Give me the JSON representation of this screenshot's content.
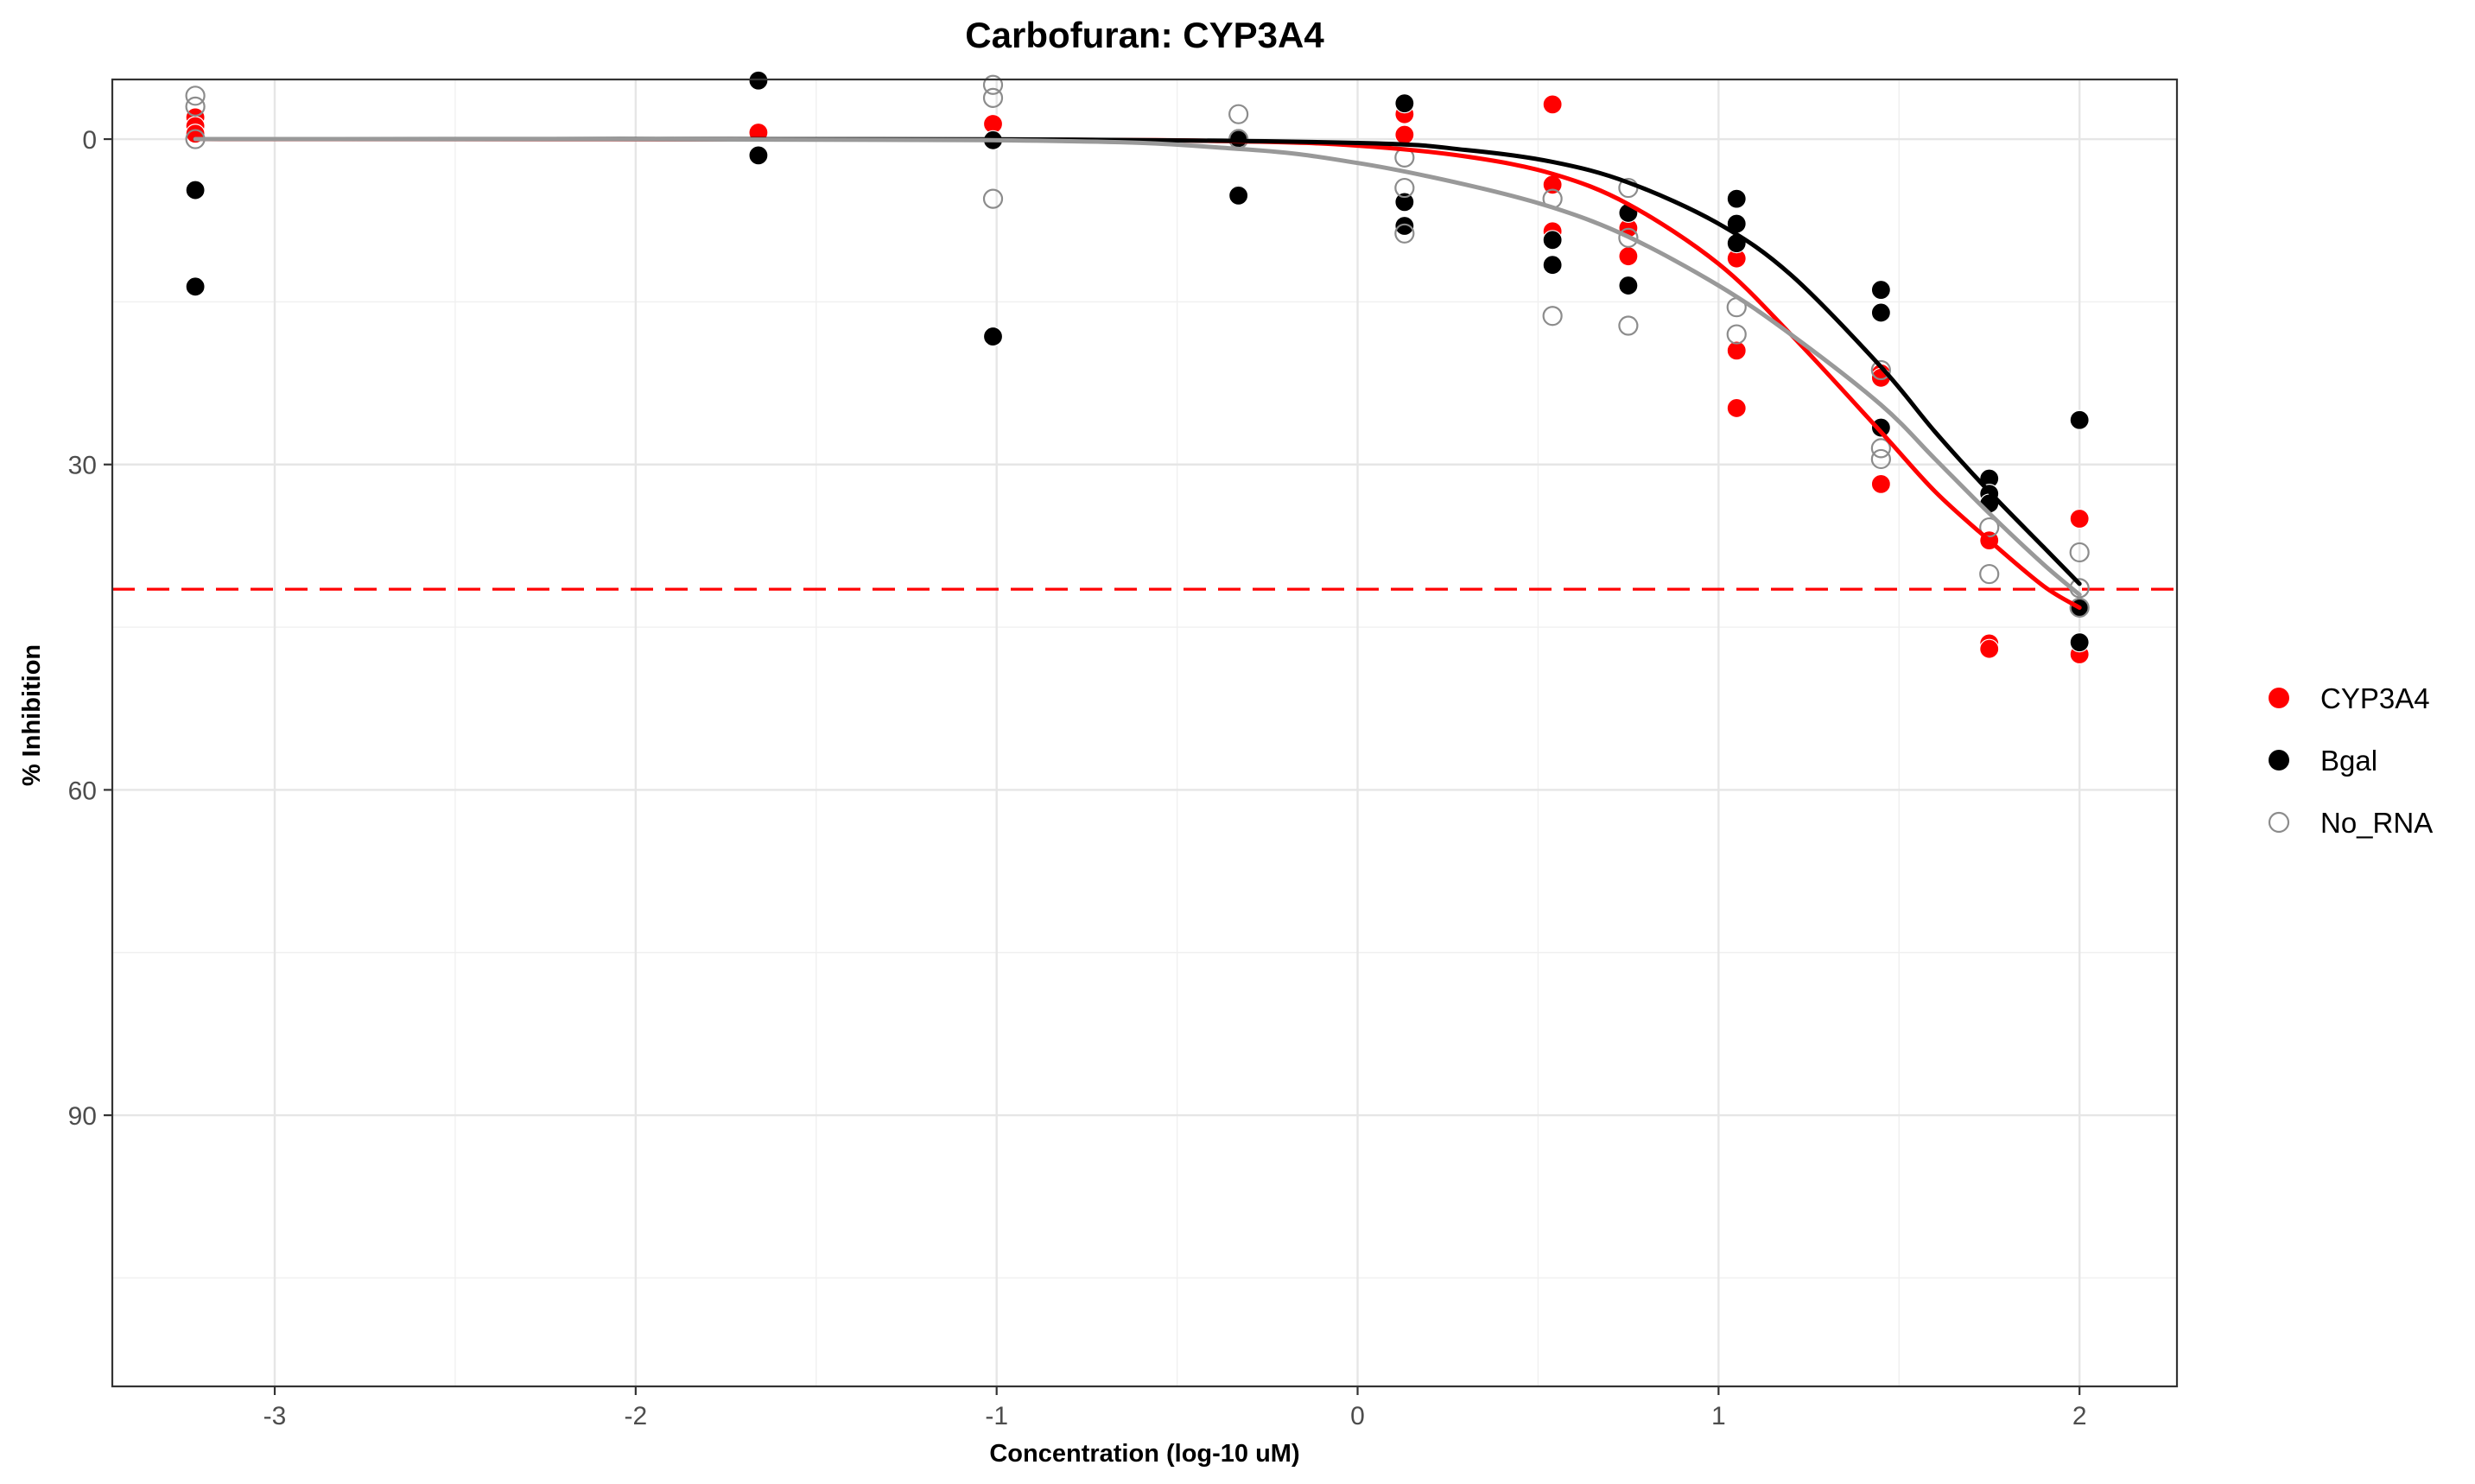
{
  "chart_data": {
    "type": "scatter",
    "title": "Carbofuran: CYP3A4",
    "xlabel": "Concentration (log-10 uM)",
    "ylabel": "% Inhibition",
    "xlim": [
      -3.45,
      2.27
    ],
    "ylim": [
      115,
      -5.5
    ],
    "y_reversed": true,
    "x_ticks": [
      -3,
      -2,
      -1,
      0,
      1,
      2
    ],
    "x_tick_labels": [
      "-3",
      "-2",
      "-1",
      "0",
      "1",
      "2"
    ],
    "y_ticks": [
      0,
      30,
      60,
      90
    ],
    "y_tick_labels": [
      "0",
      "30",
      "60",
      "90"
    ],
    "grid": true,
    "legend_position": "right",
    "reference_line": {
      "y": 41.5,
      "color": "#ff0000",
      "style": "dashed"
    },
    "series": [
      {
        "name": "CYP3A4",
        "color": "#ff0000",
        "marker": "filled",
        "points": [
          [
            -3.22,
            -2
          ],
          [
            -3.22,
            -1.2
          ],
          [
            -3.22,
            -0.5
          ],
          [
            -1.66,
            -0.6
          ],
          [
            -1.01,
            -1.4
          ],
          [
            0.13,
            -2.3
          ],
          [
            0.13,
            -0.4
          ],
          [
            0.54,
            -3.2
          ],
          [
            0.54,
            4.2
          ],
          [
            0.54,
            8.5
          ],
          [
            0.75,
            6.8
          ],
          [
            0.75,
            8.2
          ],
          [
            0.75,
            10.8
          ],
          [
            1.05,
            11
          ],
          [
            1.05,
            19.5
          ],
          [
            1.05,
            24.8
          ],
          [
            1.45,
            21.6
          ],
          [
            1.45,
            22
          ],
          [
            1.45,
            31.8
          ],
          [
            1.75,
            37
          ],
          [
            1.75,
            46.5
          ],
          [
            1.75,
            47
          ],
          [
            2,
            35
          ],
          [
            2,
            47.5
          ]
        ],
        "curve": [
          [
            -3.22,
            0
          ],
          [
            -1.0,
            0.05
          ],
          [
            -0.33,
            0.2
          ],
          [
            0,
            0.6
          ],
          [
            0.3,
            1.6
          ],
          [
            0.54,
            3.2
          ],
          [
            0.75,
            6
          ],
          [
            1.0,
            11.5
          ],
          [
            1.2,
            18
          ],
          [
            1.45,
            27
          ],
          [
            1.6,
            32.5
          ],
          [
            1.75,
            37
          ],
          [
            1.9,
            41.2
          ],
          [
            2,
            43.2
          ]
        ]
      },
      {
        "name": "Bgal",
        "color": "#000000",
        "marker": "filled",
        "points": [
          [
            -3.22,
            4.7
          ],
          [
            -3.22,
            13.6
          ],
          [
            -1.66,
            -5.4
          ],
          [
            -1.66,
            1.5
          ],
          [
            -1.01,
            0.1
          ],
          [
            -1.01,
            18.2
          ],
          [
            -0.33,
            -0.1
          ],
          [
            -0.33,
            5.1
          ],
          [
            -0.33,
            5.2
          ],
          [
            0.13,
            -3.3
          ],
          [
            0.13,
            5.8
          ],
          [
            0.13,
            8
          ],
          [
            0.54,
            9.3
          ],
          [
            0.54,
            11.6
          ],
          [
            0.75,
            6.8
          ],
          [
            0.75,
            13.5
          ],
          [
            1.05,
            5.5
          ],
          [
            1.05,
            7.8
          ],
          [
            1.05,
            9.6
          ],
          [
            1.45,
            13.9
          ],
          [
            1.45,
            16
          ],
          [
            1.45,
            26.6
          ],
          [
            1.75,
            31.3
          ],
          [
            1.75,
            32.7
          ],
          [
            1.75,
            33.6
          ],
          [
            2,
            25.9
          ],
          [
            2,
            43.2
          ],
          [
            2,
            46.4
          ]
        ],
        "curve": [
          [
            -3.22,
            0
          ],
          [
            -1.0,
            0.02
          ],
          [
            0,
            0.35
          ],
          [
            0.3,
            1
          ],
          [
            0.54,
            2.1
          ],
          [
            0.75,
            4
          ],
          [
            1.0,
            7.8
          ],
          [
            1.2,
            12.5
          ],
          [
            1.45,
            21
          ],
          [
            1.6,
            27
          ],
          [
            1.75,
            32.5
          ],
          [
            1.9,
            37.6
          ],
          [
            2,
            41
          ]
        ]
      },
      {
        "name": "No_RNA",
        "color": "#8c8c8c",
        "marker": "open",
        "points": [
          [
            -3.22,
            -4
          ],
          [
            -3.22,
            -3
          ],
          [
            -3.22,
            0
          ],
          [
            -1.01,
            -5
          ],
          [
            -1.01,
            -3.8
          ],
          [
            -1.01,
            5.5
          ],
          [
            -0.33,
            -2.3
          ],
          [
            -0.33,
            0
          ],
          [
            0.13,
            1.7
          ],
          [
            0.13,
            4.5
          ],
          [
            0.13,
            8.7
          ],
          [
            0.54,
            5.5
          ],
          [
            0.54,
            16.3
          ],
          [
            0.75,
            4.5
          ],
          [
            0.75,
            9.1
          ],
          [
            0.75,
            17.2
          ],
          [
            1.05,
            15.5
          ],
          [
            1.05,
            18
          ],
          [
            1.45,
            21.3
          ],
          [
            1.45,
            28.5
          ],
          [
            1.45,
            29.5
          ],
          [
            1.75,
            35.8
          ],
          [
            1.75,
            40.1
          ],
          [
            2,
            38.1
          ],
          [
            2,
            41.4
          ],
          [
            2,
            43.2
          ]
        ],
        "curve": [
          [
            -3.22,
            0
          ],
          [
            -1.0,
            0.1
          ],
          [
            -0.33,
            0.9
          ],
          [
            0,
            2.2
          ],
          [
            0.3,
            4.2
          ],
          [
            0.54,
            6.3
          ],
          [
            0.75,
            9
          ],
          [
            1.0,
            13.5
          ],
          [
            1.2,
            18
          ],
          [
            1.45,
            24.5
          ],
          [
            1.6,
            29.5
          ],
          [
            1.75,
            34.5
          ],
          [
            1.9,
            39.2
          ],
          [
            2,
            42
          ]
        ]
      }
    ]
  }
}
